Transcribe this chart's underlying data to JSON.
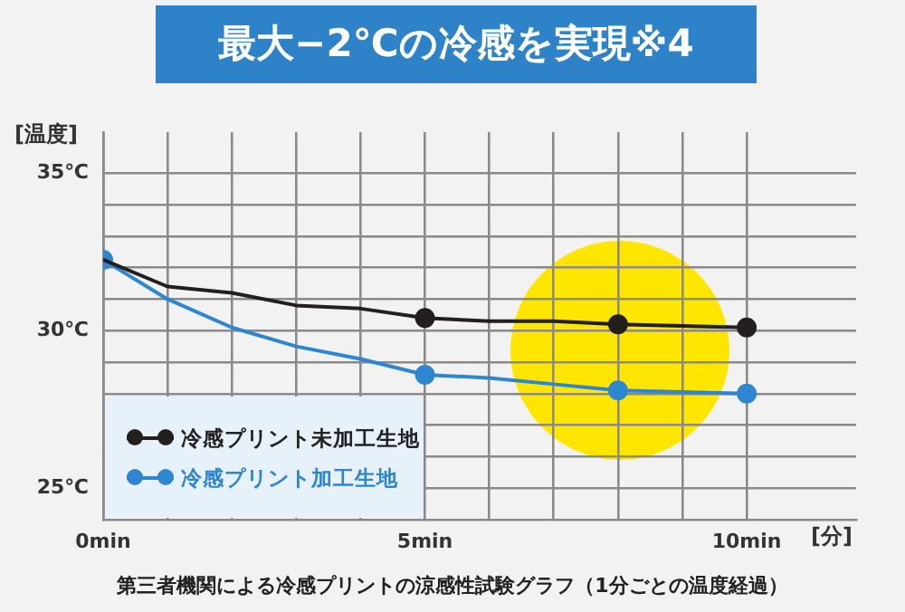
{
  "chart_data": {
    "type": "line",
    "title": "最大−2℃の冷感を実現※4",
    "xlabel": "[分]",
    "ylabel": "[温度]",
    "x": [
      0,
      1,
      2,
      3,
      4,
      5,
      6,
      7,
      8,
      9,
      10
    ],
    "series": [
      {
        "name": "冷感プリント未加工生地",
        "color": "#231f20",
        "values": [
          32.25,
          31.4,
          31.2,
          30.8,
          30.7,
          30.4,
          30.3,
          30.3,
          30.2,
          30.15,
          30.1
        ]
      },
      {
        "name": "冷感プリント加工生地",
        "color": "#2e86d0",
        "values": [
          32.25,
          31.0,
          30.1,
          29.5,
          29.1,
          28.6,
          28.5,
          28.3,
          28.1,
          28.05,
          28.0
        ]
      },
      {
        "type": "scatter",
        "color": "#231f20",
        "x": [
          5,
          8,
          10
        ],
        "values": [
          30.4,
          30.2,
          30.1
        ]
      },
      {
        "type": "scatter",
        "color": "#2e86d0",
        "x": [
          0,
          5,
          8,
          10
        ],
        "values": [
          32.25,
          28.6,
          28.1,
          28.0
        ]
      }
    ],
    "xlim": [
      0,
      11.7
    ],
    "ylim": [
      24,
      36.3
    ],
    "xticks": [
      {
        "value": 0,
        "label": "0min"
      },
      {
        "value": 1,
        "label": null
      },
      {
        "value": 2,
        "label": null
      },
      {
        "value": 3,
        "label": null
      },
      {
        "value": 4,
        "label": null
      },
      {
        "value": 5,
        "label": "5min"
      },
      {
        "value": 6,
        "label": null
      },
      {
        "value": 7,
        "label": null
      },
      {
        "value": 8,
        "label": null
      },
      {
        "value": 9,
        "label": null
      },
      {
        "value": 10,
        "label": "10min"
      }
    ],
    "yticks": [
      {
        "value": 25,
        "label": "25℃"
      },
      {
        "value": 26,
        "label": null
      },
      {
        "value": 27,
        "label": null
      },
      {
        "value": 28,
        "label": null
      },
      {
        "value": 29,
        "label": null
      },
      {
        "value": 30,
        "label": "30℃"
      },
      {
        "value": 31,
        "label": null
      },
      {
        "value": 32,
        "label": null
      },
      {
        "value": 33,
        "label": null
      },
      {
        "value": 34,
        "label": null
      },
      {
        "value": 35,
        "label": "35℃"
      }
    ],
    "grid": true,
    "legend": "bottom left",
    "line_style": "solid",
    "annotations": [
      "第三者機関による冷感プリントの涼感性試験グラフ（1分ごとの温度経過）"
    ]
  }
}
